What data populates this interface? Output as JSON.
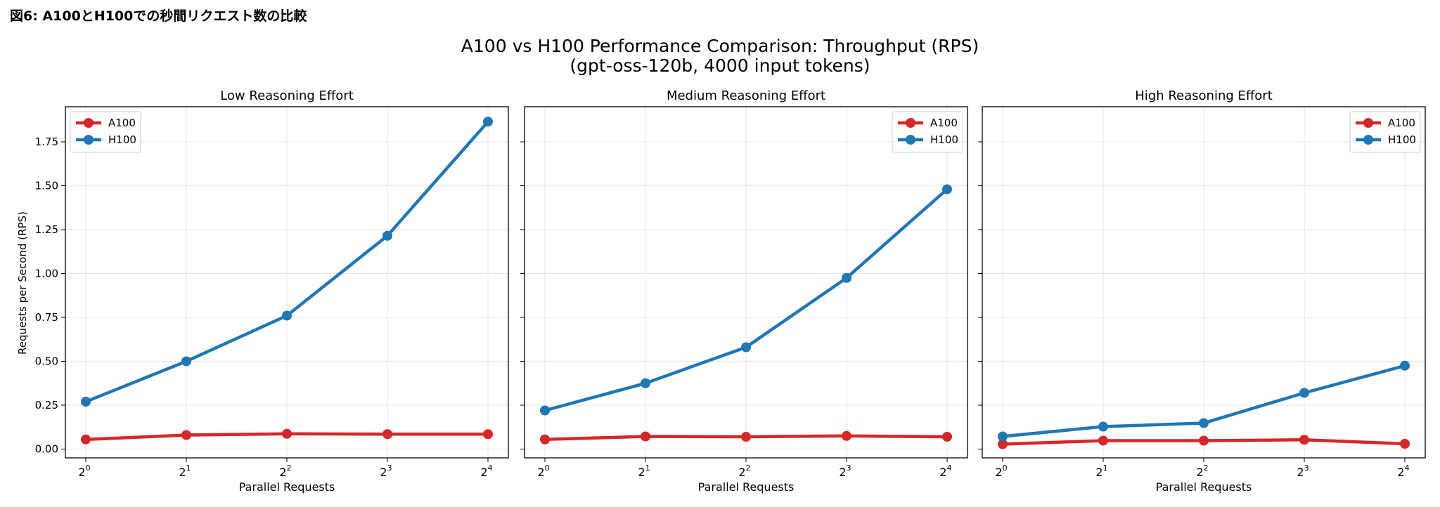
{
  "caption": "図6: A100とH100での秒間リクエスト数の比較",
  "figure": {
    "title_line1": "A100 vs H100 Performance Comparison: Throughput (RPS)",
    "title_line2": "(gpt-oss-120b, 4000 input tokens)",
    "ylabel": "Requests per Second (RPS)",
    "xlabel": "Parallel Requests"
  },
  "colors": {
    "A100": "#d62728",
    "H100": "#1f77b4"
  },
  "chart_data": [
    {
      "type": "line",
      "title": "Low Reasoning Effort",
      "x": [
        1,
        2,
        4,
        8,
        16
      ],
      "x_tick_base": "2",
      "x_tick_exponents": [
        "0",
        "1",
        "2",
        "3",
        "4"
      ],
      "xscale": "log2",
      "xlabel": "Parallel Requests",
      "ylabel": "Requests per Second (RPS)",
      "ylim": [
        -0.05,
        1.95
      ],
      "yticks": [
        "0.00",
        "0.25",
        "0.50",
        "0.75",
        "1.00",
        "1.25",
        "1.50",
        "1.75"
      ],
      "grid": true,
      "legend": "upper-left",
      "series": [
        {
          "name": "A100",
          "values": [
            0.055,
            0.08,
            0.087,
            0.085,
            0.085
          ]
        },
        {
          "name": "H100",
          "values": [
            0.27,
            0.5,
            0.76,
            1.215,
            1.865
          ]
        }
      ]
    },
    {
      "type": "line",
      "title": "Medium Reasoning Effort",
      "x": [
        1,
        2,
        4,
        8,
        16
      ],
      "x_tick_base": "2",
      "x_tick_exponents": [
        "0",
        "1",
        "2",
        "3",
        "4"
      ],
      "xscale": "log2",
      "xlabel": "Parallel Requests",
      "ylim": [
        -0.05,
        1.95
      ],
      "grid": true,
      "legend": "upper-right",
      "series": [
        {
          "name": "A100",
          "values": [
            0.055,
            0.072,
            0.07,
            0.075,
            0.07
          ]
        },
        {
          "name": "H100",
          "values": [
            0.22,
            0.375,
            0.58,
            0.975,
            1.48
          ]
        }
      ]
    },
    {
      "type": "line",
      "title": "High Reasoning Effort",
      "x": [
        1,
        2,
        4,
        8,
        16
      ],
      "x_tick_base": "2",
      "x_tick_exponents": [
        "0",
        "1",
        "2",
        "3",
        "4"
      ],
      "xscale": "log2",
      "xlabel": "Parallel Requests",
      "ylim": [
        -0.05,
        1.95
      ],
      "grid": true,
      "legend": "upper-right",
      "series": [
        {
          "name": "A100",
          "values": [
            0.028,
            0.048,
            0.048,
            0.053,
            0.03
          ]
        },
        {
          "name": "H100",
          "values": [
            0.072,
            0.128,
            0.148,
            0.32,
            0.475
          ]
        }
      ]
    }
  ]
}
